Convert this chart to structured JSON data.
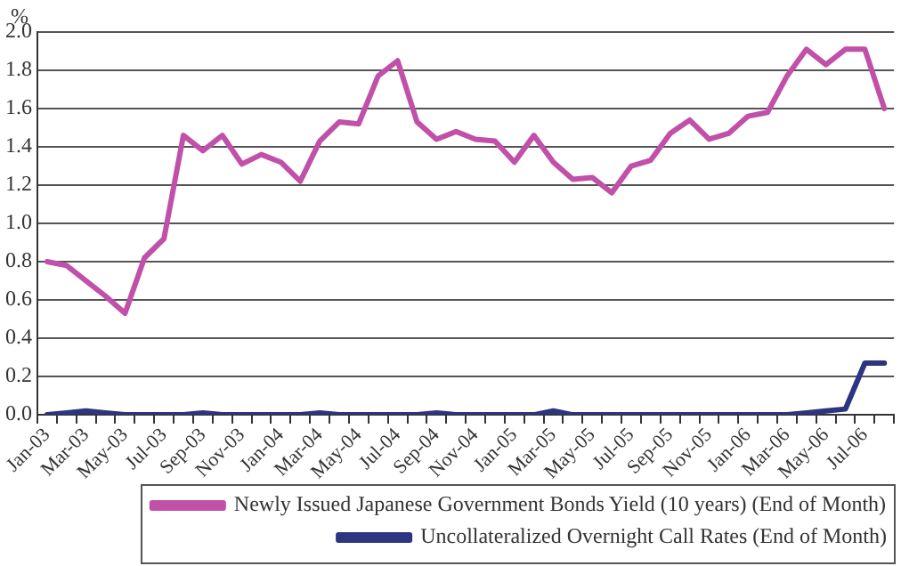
{
  "chart_data": {
    "type": "line",
    "ylabel": "%",
    "categories": [
      "Jan-03",
      null,
      "Mar-03",
      null,
      "May-03",
      null,
      "Jul-03",
      null,
      "Sep-03",
      null,
      "Nov-03",
      null,
      "Jan-04",
      null,
      "Mar-04",
      null,
      "May-04",
      null,
      "Jul-04",
      null,
      "Sep-04",
      null,
      "Nov-04",
      null,
      "Jan-05",
      null,
      "Mar-05",
      null,
      "May-05",
      null,
      "Jul-05",
      null,
      "Sep-05",
      null,
      "Nov-05",
      null,
      "Jan-06",
      null,
      "Mar-06",
      null,
      "May-06",
      null,
      "Jul-06",
      null
    ],
    "series": [
      {
        "name": "Newly Issued Japanese Government Bonds Yield (10 years) (End of Month)",
        "color": "#c050a8",
        "values": [
          0.8,
          0.78,
          0.7,
          0.62,
          0.53,
          0.82,
          0.92,
          1.46,
          1.38,
          1.46,
          1.31,
          1.36,
          1.32,
          1.22,
          1.43,
          1.53,
          1.52,
          1.77,
          1.85,
          1.53,
          1.44,
          1.48,
          1.44,
          1.43,
          1.32,
          1.46,
          1.32,
          1.23,
          1.24,
          1.16,
          1.3,
          1.33,
          1.47,
          1.54,
          1.44,
          1.47,
          1.56,
          1.58,
          1.77,
          1.91,
          1.83,
          1.91,
          1.91,
          1.6
        ]
      },
      {
        "name": "Uncollateralized Overnight Call Rates (End of Month)",
        "color": "#2e3580",
        "values": [
          0.0,
          0.01,
          0.02,
          0.01,
          0.0,
          0.0,
          0.0,
          0.0,
          0.01,
          0.0,
          0.0,
          0.0,
          0.0,
          0.0,
          0.01,
          0.0,
          0.0,
          0.0,
          0.0,
          0.0,
          0.01,
          0.0,
          0.0,
          0.0,
          0.0,
          0.0,
          0.02,
          0.0,
          0.0,
          0.0,
          0.0,
          0.0,
          0.0,
          0.0,
          0.0,
          0.0,
          0.0,
          0.0,
          0.0,
          0.01,
          0.02,
          0.03,
          0.27,
          0.27
        ]
      }
    ],
    "ylim": [
      0,
      2
    ],
    "yticks": [
      {
        "value": 0,
        "label": "0.0"
      },
      {
        "value": 0.2,
        "label": "0.2"
      },
      {
        "value": 0.4,
        "label": "0.4"
      },
      {
        "value": 0.6,
        "label": "0.6"
      },
      {
        "value": 0.8,
        "label": "0.8"
      },
      {
        "value": 1,
        "label": "1.0"
      },
      {
        "value": 1.2,
        "label": "1.2"
      },
      {
        "value": 1.4,
        "label": "1.4"
      },
      {
        "value": 1.6,
        "label": "1.6"
      },
      {
        "value": 1.8,
        "label": "1.8"
      },
      {
        "value": 2,
        "label": "2.0"
      }
    ],
    "grid": "y",
    "legend": "bottom right",
    "marker": "none",
    "line_style": "solid"
  }
}
